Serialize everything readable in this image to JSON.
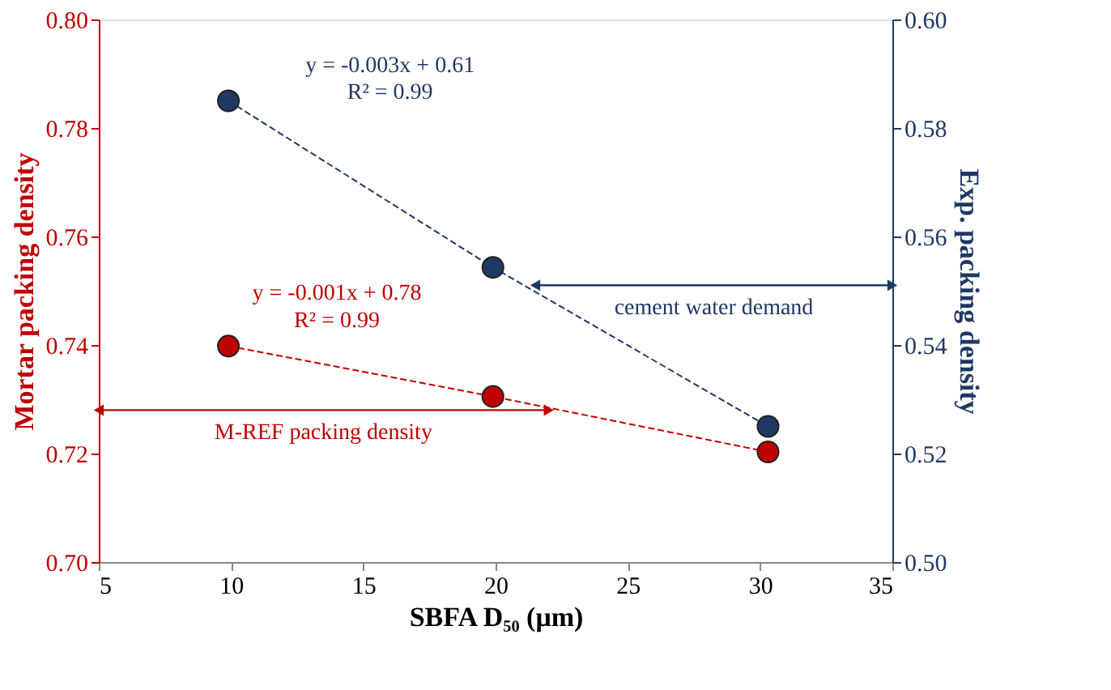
{
  "chart_data": {
    "type": "line",
    "xlabel": "SBFA D₅₀ (μm)",
    "ylabel": "Mortar packing density",
    "y2label": "Exp. packing density",
    "x": [
      9.9,
      19.9,
      30.3
    ],
    "series": [
      {
        "color": "#c00000",
        "values": [
          0.7398,
          0.7305,
          0.7203
        ]
      },
      {
        "color": "#203864",
        "values": [
          0.585,
          0.5543,
          0.525
        ],
        "axis": "y2"
      }
    ],
    "xlim": [
      5,
      35
    ],
    "xticks": [
      5,
      10,
      15,
      20,
      25,
      30,
      35
    ],
    "ylim": [
      0.7,
      0.8
    ],
    "yticks": [
      {
        "value": 0.7,
        "label": "0.70"
      },
      {
        "value": 0.72,
        "label": "0.72"
      },
      {
        "value": 0.74,
        "label": "0.74"
      },
      {
        "value": 0.76,
        "label": "0.76"
      },
      {
        "value": 0.78,
        "label": "0.78"
      },
      {
        "value": 0.8,
        "label": "0.80"
      }
    ],
    "y2lim": [
      0.5,
      0.6
    ],
    "y2ticks": [
      {
        "value": 0.5,
        "label": "0.50"
      },
      {
        "value": 0.52,
        "label": "0.52"
      },
      {
        "value": 0.54,
        "label": "0.54"
      },
      {
        "value": 0.56,
        "label": "0.56"
      },
      {
        "value": 0.58,
        "label": "0.58"
      },
      {
        "value": 0.6,
        "label": "0.60"
      }
    ],
    "annotations": [
      "y = -0.003x + 0.61",
      "R² = 0.99",
      "y = -0.001x + 0.78",
      "R² = 0.99",
      "M-REF packing density",
      "cement water demand"
    ],
    "marker": "circle",
    "line_style": "dashed",
    "grid": false
  }
}
